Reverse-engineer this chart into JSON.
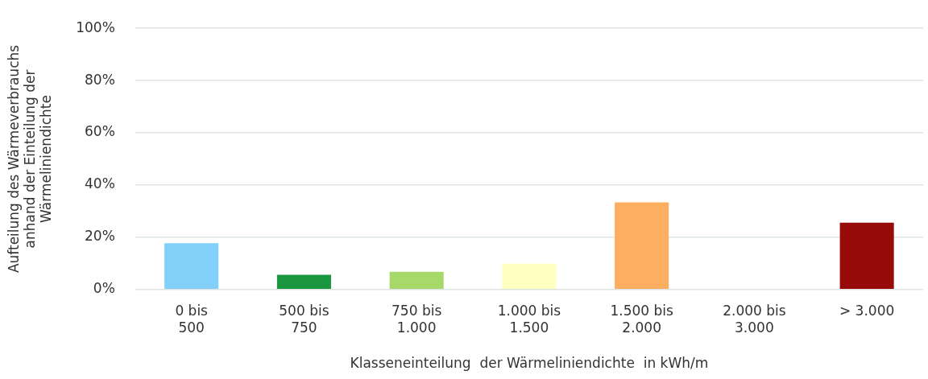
{
  "chart_data": {
    "type": "bar",
    "xlabel": "Klasseneinteilung  der Wärmeliniendichte  in kWh/m",
    "ylabel": "Aufteilung  des Wärmeverbrauchs anhand der Einteilung der Wärmeliniendichte",
    "categories": [
      "0 bis 500",
      "500 bis 750",
      "750 bis 1.000",
      "1.000 bis 1.500",
      "1.500 bis 2.000",
      "2.000 bis 3.000",
      "> 3.000"
    ],
    "values": [
      17.7,
      5.6,
      6.8,
      9.9,
      33.4,
      0,
      25.6
    ],
    "colors": [
      "#82cffa",
      "#1a9641",
      "#a6d96a",
      "#ffffc0",
      "#fdae61",
      "#f4a3a3",
      "#960a0a"
    ],
    "ylim": [
      0,
      100
    ],
    "yticks": [
      {
        "value": 0,
        "label": "0%"
      },
      {
        "value": 20,
        "label": "20%"
      },
      {
        "value": 40,
        "label": "40%"
      },
      {
        "value": 60,
        "label": "60%"
      },
      {
        "value": 80,
        "label": "80%"
      },
      {
        "value": 100,
        "label": "100%"
      }
    ],
    "grid": "y"
  }
}
